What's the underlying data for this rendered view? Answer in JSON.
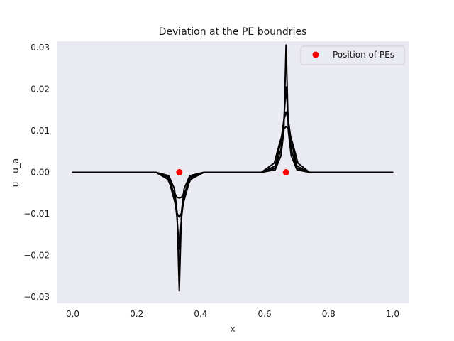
{
  "chart_data": {
    "type": "line",
    "title": "Deviation at the PE boundries",
    "xlabel": "x",
    "ylabel": "u - u_a",
    "xlim": [
      -0.05,
      1.05
    ],
    "ylim": [
      -0.0315,
      0.0315
    ],
    "x_ticks": [
      0.0,
      0.2,
      0.4,
      0.6,
      0.8,
      1.0
    ],
    "x_tick_labels": [
      "0.0",
      "0.2",
      "0.4",
      "0.6",
      "0.8",
      "1.0"
    ],
    "y_ticks": [
      -0.03,
      -0.02,
      -0.01,
      0.0,
      0.01,
      0.02,
      0.03
    ],
    "y_tick_labels": [
      "−0.03",
      "−0.02",
      "−0.01",
      "0.00",
      "0.01",
      "0.02",
      "0.03"
    ],
    "grid": false,
    "background_color": "#eaeaf2",
    "line_color": "#000000",
    "marker_color": "#ff0000",
    "legend": {
      "placement": "top-right",
      "entries": [
        "Position of PEs"
      ]
    },
    "series": [
      {
        "values": [
          [
            0.0,
            0.0
          ],
          [
            0.26,
            0.0
          ],
          [
            0.3,
            -0.0008
          ],
          [
            0.318,
            -0.004
          ],
          [
            0.326,
            -0.0095
          ],
          [
            0.333,
            -0.0285
          ],
          [
            0.34,
            -0.0095
          ],
          [
            0.348,
            -0.004
          ],
          [
            0.366,
            -0.0008
          ],
          [
            0.41,
            0.0
          ],
          [
            0.59,
            0.0
          ],
          [
            0.633,
            0.0006
          ],
          [
            0.651,
            0.004
          ],
          [
            0.66,
            0.0099
          ],
          [
            0.667,
            0.0306
          ],
          [
            0.674,
            0.0099
          ],
          [
            0.683,
            0.004
          ],
          [
            0.701,
            0.0006
          ],
          [
            0.74,
            0.0
          ],
          [
            1.0,
            0.0
          ]
        ]
      },
      {
        "values": [
          [
            0.0,
            0.0
          ],
          [
            0.26,
            0.0
          ],
          [
            0.3,
            -0.0012
          ],
          [
            0.318,
            -0.0055
          ],
          [
            0.326,
            -0.011
          ],
          [
            0.333,
            -0.0185
          ],
          [
            0.34,
            -0.011
          ],
          [
            0.348,
            -0.0055
          ],
          [
            0.366,
            -0.0012
          ],
          [
            0.41,
            0.0
          ],
          [
            0.59,
            0.0
          ],
          [
            0.633,
            0.001
          ],
          [
            0.651,
            0.0055
          ],
          [
            0.66,
            0.0125
          ],
          [
            0.667,
            0.0205
          ],
          [
            0.674,
            0.0125
          ],
          [
            0.683,
            0.0055
          ],
          [
            0.701,
            0.001
          ],
          [
            0.74,
            0.0
          ],
          [
            1.0,
            0.0
          ]
        ]
      },
      {
        "values": [
          [
            0.0,
            0.0
          ],
          [
            0.26,
            0.0
          ],
          [
            0.3,
            -0.0018
          ],
          [
            0.318,
            -0.0068
          ],
          [
            0.326,
            -0.0098
          ],
          [
            0.333,
            -0.0108
          ],
          [
            0.34,
            -0.0098
          ],
          [
            0.348,
            -0.0068
          ],
          [
            0.366,
            -0.0018
          ],
          [
            0.41,
            0.0
          ],
          [
            0.59,
            0.0
          ],
          [
            0.633,
            0.0015
          ],
          [
            0.651,
            0.0075
          ],
          [
            0.66,
            0.0125
          ],
          [
            0.667,
            0.0145
          ],
          [
            0.674,
            0.0125
          ],
          [
            0.683,
            0.0075
          ],
          [
            0.701,
            0.0015
          ],
          [
            0.74,
            0.0
          ],
          [
            1.0,
            0.0
          ]
        ]
      },
      {
        "values": [
          [
            0.0,
            0.0
          ],
          [
            0.26,
            0.0
          ],
          [
            0.296,
            -0.0015
          ],
          [
            0.312,
            -0.0042
          ],
          [
            0.326,
            -0.006
          ],
          [
            0.333,
            -0.0062
          ],
          [
            0.34,
            -0.006
          ],
          [
            0.354,
            -0.0042
          ],
          [
            0.37,
            -0.0015
          ],
          [
            0.41,
            0.0
          ],
          [
            0.59,
            0.0
          ],
          [
            0.63,
            0.0022
          ],
          [
            0.646,
            0.0068
          ],
          [
            0.66,
            0.0104
          ],
          [
            0.667,
            0.011
          ],
          [
            0.674,
            0.0104
          ],
          [
            0.688,
            0.0068
          ],
          [
            0.704,
            0.0022
          ],
          [
            0.74,
            0.0
          ],
          [
            1.0,
            0.0
          ]
        ]
      }
    ],
    "markers": {
      "name": "Position of PEs",
      "x": [
        0.3333,
        0.6667
      ],
      "y": [
        0.0,
        0.0
      ]
    }
  }
}
